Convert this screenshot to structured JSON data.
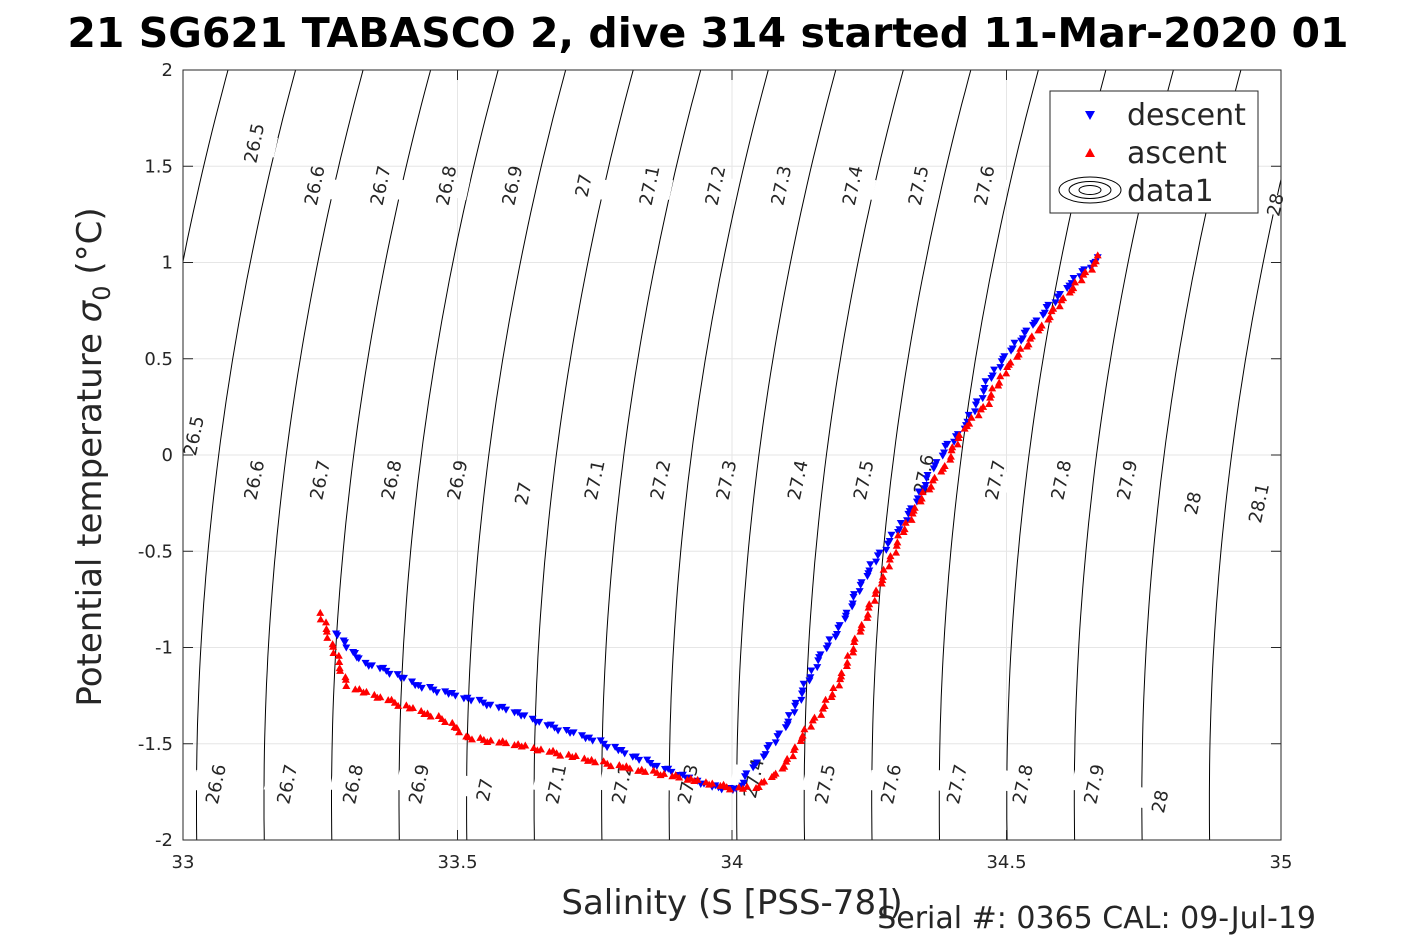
{
  "chart_data": {
    "type": "scatter",
    "title": "21 SG621 TABASCO 2, dive 314 started 11-Mar-2020 01",
    "xlabel": "Salinity (S [PSS-78])",
    "ylabel_main": "Potential temperature ",
    "ylabel_sym": "σ",
    "ylabel_sub": "0",
    "ylabel_unit": " (°C)",
    "footer": "Serial #: 0365  CAL: 09-Jul-19",
    "xlim": [
      33,
      35
    ],
    "ylim": [
      -2,
      2
    ],
    "xticks": [
      33,
      33.5,
      34,
      34.5,
      35
    ],
    "xtick_labels": [
      "33",
      "33.5",
      "34",
      "34.5",
      "35"
    ],
    "yticks": [
      -2,
      -1.5,
      -1,
      -0.5,
      0,
      0.5,
      1,
      1.5,
      2
    ],
    "ytick_labels": [
      "-2",
      "-1.5",
      "-1",
      "-0.5",
      "0",
      "0.5",
      "1",
      "1.5",
      "2"
    ],
    "grid": true,
    "legend_position": "top-right",
    "legend": [
      "descent",
      "ascent",
      "data1"
    ],
    "colors": {
      "descent": "#0000ff",
      "ascent": "#ff0000",
      "contour": "#000000",
      "grid": "#e6e6e6"
    },
    "contours": {
      "levels": [
        26.5,
        26.6,
        26.7,
        26.8,
        26.9,
        27,
        27.1,
        27.2,
        27.3,
        27.4,
        27.5,
        27.6,
        27.7,
        27.8,
        27.9,
        28,
        28.1
      ],
      "labels": [
        {
          "text": "26.5",
          "s": 33.13,
          "t": 1.62
        },
        {
          "text": "26.6",
          "s": 33.24,
          "t": 1.4
        },
        {
          "text": "26.7",
          "s": 33.36,
          "t": 1.4
        },
        {
          "text": "26.8",
          "s": 33.48,
          "t": 1.4
        },
        {
          "text": "26.9",
          "s": 33.6,
          "t": 1.4
        },
        {
          "text": "27",
          "s": 33.73,
          "t": 1.4
        },
        {
          "text": "27.1",
          "s": 33.85,
          "t": 1.4
        },
        {
          "text": "27.2",
          "s": 33.97,
          "t": 1.4
        },
        {
          "text": "27.3",
          "s": 34.09,
          "t": 1.4
        },
        {
          "text": "27.4",
          "s": 34.22,
          "t": 1.4
        },
        {
          "text": "27.5",
          "s": 34.34,
          "t": 1.4
        },
        {
          "text": "27.6",
          "s": 34.46,
          "t": 1.4
        },
        {
          "text": "28",
          "s": 34.99,
          "t": 1.3
        },
        {
          "text": "26.5",
          "s": 33.02,
          "t": 0.1
        },
        {
          "text": "26.6",
          "s": 33.13,
          "t": -0.13
        },
        {
          "text": "26.7",
          "s": 33.25,
          "t": -0.13
        },
        {
          "text": "26.8",
          "s": 33.38,
          "t": -0.13
        },
        {
          "text": "26.9",
          "s": 33.5,
          "t": -0.13
        },
        {
          "text": "27",
          "s": 33.62,
          "t": -0.2
        },
        {
          "text": "27.1",
          "s": 33.75,
          "t": -0.13
        },
        {
          "text": "27.2",
          "s": 33.87,
          "t": -0.13
        },
        {
          "text": "27.3",
          "s": 33.99,
          "t": -0.13
        },
        {
          "text": "27.4",
          "s": 34.12,
          "t": -0.13
        },
        {
          "text": "27.5",
          "s": 34.24,
          "t": -0.13
        },
        {
          "text": "27.6",
          "s": 34.35,
          "t": -0.1
        },
        {
          "text": "27.7",
          "s": 34.48,
          "t": -0.13
        },
        {
          "text": "27.8",
          "s": 34.6,
          "t": -0.13
        },
        {
          "text": "27.9",
          "s": 34.72,
          "t": -0.13
        },
        {
          "text": "28",
          "s": 34.84,
          "t": -0.25
        },
        {
          "text": "28.1",
          "s": 34.96,
          "t": -0.25
        },
        {
          "text": "26.6",
          "s": 33.06,
          "t": -1.71
        },
        {
          "text": "26.7",
          "s": 33.19,
          "t": -1.71
        },
        {
          "text": "26.8",
          "s": 33.31,
          "t": -1.71
        },
        {
          "text": "26.9",
          "s": 33.43,
          "t": -1.71
        },
        {
          "text": "27",
          "s": 33.55,
          "t": -1.74
        },
        {
          "text": "27.1",
          "s": 33.68,
          "t": -1.71
        },
        {
          "text": "27.2",
          "s": 33.8,
          "t": -1.71
        },
        {
          "text": "27.3",
          "s": 33.92,
          "t": -1.71
        },
        {
          "text": "27.4",
          "s": 34.04,
          "t": -1.68
        },
        {
          "text": "27.5",
          "s": 34.17,
          "t": -1.71
        },
        {
          "text": "27.6",
          "s": 34.29,
          "t": -1.71
        },
        {
          "text": "27.7",
          "s": 34.41,
          "t": -1.71
        },
        {
          "text": "27.8",
          "s": 34.53,
          "t": -1.71
        },
        {
          "text": "27.9",
          "s": 34.66,
          "t": -1.71
        },
        {
          "text": "28",
          "s": 34.78,
          "t": -1.8
        }
      ]
    },
    "series": [
      {
        "name": "descent",
        "marker": "triangle-down",
        "key_points": [
          [
            34.67,
            1.02
          ],
          [
            34.65,
            0.98
          ],
          [
            34.62,
            0.9
          ],
          [
            34.58,
            0.78
          ],
          [
            34.54,
            0.65
          ],
          [
            34.5,
            0.52
          ],
          [
            34.47,
            0.4
          ],
          [
            34.44,
            0.23
          ],
          [
            34.42,
            0.13
          ],
          [
            34.39,
            0.04
          ],
          [
            34.36,
            -0.1
          ],
          [
            34.33,
            -0.27
          ],
          [
            34.3,
            -0.4
          ],
          [
            34.26,
            -0.55
          ],
          [
            34.23,
            -0.7
          ],
          [
            34.2,
            -0.88
          ],
          [
            34.16,
            -1.05
          ],
          [
            34.13,
            -1.22
          ],
          [
            34.1,
            -1.4
          ],
          [
            34.06,
            -1.55
          ],
          [
            34.03,
            -1.65
          ],
          [
            34.01,
            -1.74
          ],
          [
            33.96,
            -1.72
          ],
          [
            33.85,
            -1.6
          ],
          [
            33.75,
            -1.48
          ],
          [
            33.66,
            -1.4
          ],
          [
            33.6,
            -1.33
          ],
          [
            33.5,
            -1.25
          ],
          [
            33.43,
            -1.2
          ],
          [
            33.38,
            -1.13
          ],
          [
            33.33,
            -1.08
          ],
          [
            33.3,
            -1.0
          ],
          [
            33.28,
            -0.92
          ]
        ]
      },
      {
        "name": "ascent",
        "marker": "triangle-up",
        "key_points": [
          [
            34.67,
            1.03
          ],
          [
            34.64,
            0.93
          ],
          [
            34.6,
            0.8
          ],
          [
            34.55,
            0.62
          ],
          [
            34.5,
            0.45
          ],
          [
            34.46,
            0.25
          ],
          [
            34.42,
            0.13
          ],
          [
            34.39,
            -0.05
          ],
          [
            34.35,
            -0.2
          ],
          [
            34.31,
            -0.4
          ],
          [
            34.28,
            -0.6
          ],
          [
            34.25,
            -0.8
          ],
          [
            34.22,
            -1.0
          ],
          [
            34.2,
            -1.15
          ],
          [
            34.17,
            -1.3
          ],
          [
            34.13,
            -1.45
          ],
          [
            34.1,
            -1.6
          ],
          [
            34.07,
            -1.68
          ],
          [
            34.04,
            -1.73
          ],
          [
            34.0,
            -1.73
          ],
          [
            33.95,
            -1.7
          ],
          [
            33.88,
            -1.66
          ],
          [
            33.8,
            -1.62
          ],
          [
            33.7,
            -1.56
          ],
          [
            33.6,
            -1.5
          ],
          [
            33.52,
            -1.47
          ],
          [
            33.48,
            -1.38
          ],
          [
            33.43,
            -1.33
          ],
          [
            33.37,
            -1.27
          ],
          [
            33.33,
            -1.23
          ],
          [
            33.3,
            -1.2
          ],
          [
            33.28,
            -1.05
          ],
          [
            33.26,
            -0.9
          ],
          [
            33.25,
            -0.82
          ]
        ]
      }
    ]
  }
}
